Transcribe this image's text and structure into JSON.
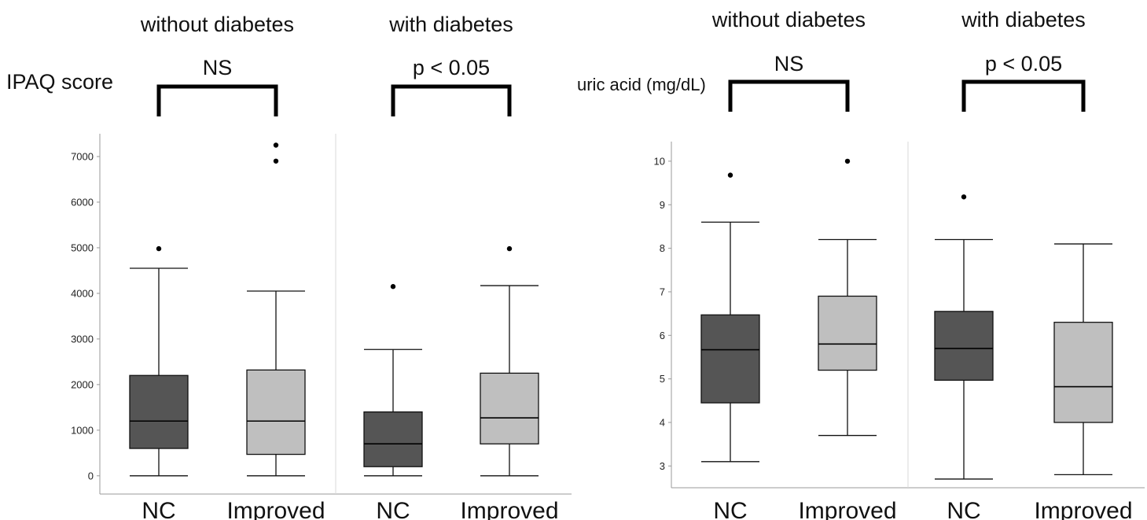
{
  "chart_data": [
    {
      "type": "box",
      "title": "",
      "ylabel": "IPAQ score",
      "xlabel": "",
      "ylim": [
        -400,
        7500
      ],
      "yticks": [
        0,
        1000,
        2000,
        3000,
        4000,
        5000,
        6000,
        7000
      ],
      "groups": [
        {
          "name": "without diabetes",
          "significance": "NS",
          "boxes": [
            {
              "category": "NC",
              "fill": "#555555",
              "min": 0,
              "q1": 600,
              "median": 1200,
              "q3": 2200,
              "max": 4550,
              "outliers": [
                4980
              ]
            },
            {
              "category": "Improved",
              "fill": "#bfbfbf",
              "min": 0,
              "q1": 470,
              "median": 1200,
              "q3": 2320,
              "max": 4050,
              "outliers": [
                6900,
                7250
              ]
            }
          ]
        },
        {
          "name": "with diabetes",
          "significance": "p < 0.05",
          "boxes": [
            {
              "category": "NC",
              "fill": "#555555",
              "min": 0,
              "q1": 200,
              "median": 700,
              "q3": 1400,
              "max": 2770,
              "outliers": [
                4150
              ]
            },
            {
              "category": "Improved",
              "fill": "#bfbfbf",
              "min": 0,
              "q1": 700,
              "median": 1270,
              "q3": 2250,
              "max": 4170,
              "outliers": [
                4980
              ]
            }
          ]
        }
      ]
    },
    {
      "type": "box",
      "title": "",
      "ylabel": "uric acid (mg/dL)",
      "xlabel": "",
      "ylim": [
        2.5,
        10.45
      ],
      "yticks": [
        3,
        4,
        5,
        6,
        7,
        8,
        9,
        10
      ],
      "groups": [
        {
          "name": "without diabetes",
          "significance": "NS",
          "boxes": [
            {
              "category": "NC",
              "fill": "#555555",
              "min": 3.1,
              "q1": 4.45,
              "median": 5.67,
              "q3": 6.47,
              "max": 8.6,
              "outliers": [
                9.68
              ]
            },
            {
              "category": "Improved",
              "fill": "#bfbfbf",
              "min": 3.7,
              "q1": 5.2,
              "median": 5.8,
              "q3": 6.9,
              "max": 8.2,
              "outliers": [
                10.0
              ]
            }
          ]
        },
        {
          "name": "with diabetes",
          "significance": "p < 0.05",
          "boxes": [
            {
              "category": "NC",
              "fill": "#555555",
              "min": 2.7,
              "q1": 4.97,
              "median": 5.7,
              "q3": 6.55,
              "max": 8.2,
              "outliers": [
                9.18
              ]
            },
            {
              "category": "Improved",
              "fill": "#bfbfbf",
              "min": 2.8,
              "q1": 4.0,
              "median": 4.82,
              "q3": 6.3,
              "max": 8.1,
              "outliers": []
            }
          ]
        }
      ]
    }
  ]
}
